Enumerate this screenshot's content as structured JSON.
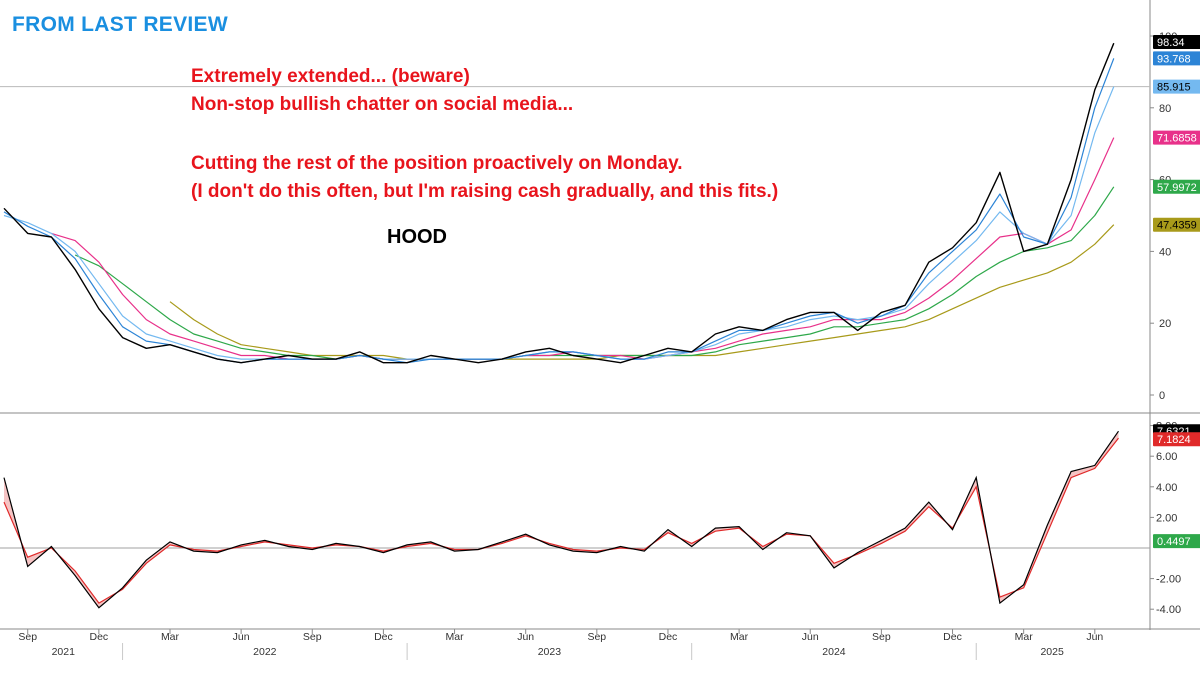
{
  "header": {
    "label": "FROM LAST REVIEW",
    "color": "#1a8fe0"
  },
  "notes": {
    "color": "#e8141c",
    "line1": "Extremely extended... (beware)",
    "line2": "Non-stop bullish chatter on social media...",
    "line3": "Cutting the rest of the position proactively on Monday.",
    "line4": "(I don't do this often, but I'm raising cash gradually, and this fits.)"
  },
  "chart_data": [
    {
      "type": "line",
      "ticker": "HOOD",
      "xlabel": "",
      "ylabel": "",
      "ylim": [
        0,
        100
      ],
      "yticks": [
        "0",
        "20",
        "40",
        "60",
        "80",
        "100"
      ],
      "x_months": [
        "Sep",
        "Dec",
        "Mar",
        "Jun",
        "Sep",
        "Dec",
        "Mar",
        "Jun",
        "Sep",
        "Dec",
        "Mar",
        "Jun",
        "Sep",
        "Dec",
        "Mar",
        "Jun"
      ],
      "x_years": [
        "2021",
        "2022",
        "2023",
        "2024",
        "2025"
      ],
      "reference_line": 85.915,
      "x": [
        "2021-08",
        "2021-09",
        "2021-10",
        "2021-11",
        "2021-12",
        "2022-01",
        "2022-02",
        "2022-03",
        "2022-04",
        "2022-05",
        "2022-06",
        "2022-07",
        "2022-08",
        "2022-09",
        "2022-10",
        "2022-11",
        "2022-12",
        "2023-01",
        "2023-02",
        "2023-03",
        "2023-04",
        "2023-05",
        "2023-06",
        "2023-07",
        "2023-08",
        "2023-09",
        "2023-10",
        "2023-11",
        "2023-12",
        "2024-01",
        "2024-02",
        "2024-03",
        "2024-04",
        "2024-05",
        "2024-06",
        "2024-07",
        "2024-08",
        "2024-09",
        "2024-10",
        "2024-11",
        "2024-12",
        "2025-01",
        "2025-02",
        "2025-03",
        "2025-04",
        "2025-05",
        "2025-06",
        "2025-07"
      ],
      "series": [
        {
          "role": "price",
          "color": "#000000",
          "values": [
            52,
            45,
            44,
            35,
            24,
            16,
            13,
            14,
            12,
            10,
            9,
            10,
            11,
            10,
            10,
            12,
            9,
            9,
            11,
            10,
            9,
            10,
            12,
            13,
            11,
            10,
            9,
            11,
            13,
            12,
            17,
            19,
            18,
            21,
            23,
            23,
            18,
            23,
            25,
            37,
            41,
            48,
            62,
            40,
            42,
            60,
            85,
            98
          ]
        },
        {
          "role": "ma-short",
          "color": "#2c84d6",
          "values": [
            51,
            47,
            44,
            38,
            28,
            19,
            15,
            14,
            12,
            10,
            9,
            10,
            10,
            10,
            10,
            11,
            10,
            9,
            10,
            10,
            10,
            10,
            11,
            12,
            12,
            11,
            10,
            10,
            12,
            12,
            15,
            18,
            18,
            20,
            22,
            23,
            20,
            22,
            25,
            34,
            40,
            46,
            56,
            44,
            42,
            55,
            80,
            93.768
          ]
        },
        {
          "role": "ma-mid-short",
          "color": "#74b9f0",
          "values": [
            50,
            48,
            45,
            40,
            31,
            22,
            17,
            15,
            13,
            11,
            10,
            10,
            10,
            10,
            10,
            11,
            10,
            10,
            10,
            10,
            10,
            10,
            11,
            12,
            12,
            11,
            10,
            10,
            11,
            12,
            14,
            17,
            18,
            19,
            21,
            22,
            21,
            22,
            24,
            31,
            37,
            43,
            51,
            45,
            42,
            50,
            73,
            85.915
          ]
        },
        {
          "role": "ma-mid",
          "color": "#e8318a",
          "values": [
            null,
            null,
            45,
            43,
            37,
            28,
            21,
            17,
            15,
            13,
            11,
            11,
            10,
            10,
            10,
            11,
            10,
            10,
            10,
            10,
            10,
            10,
            11,
            11,
            12,
            11,
            11,
            10,
            11,
            12,
            13,
            15,
            17,
            18,
            19,
            21,
            21,
            21,
            23,
            27,
            32,
            38,
            44,
            45,
            42,
            46,
            60,
            71.6858
          ]
        },
        {
          "role": "ma-long",
          "color": "#2ea84a",
          "values": [
            null,
            null,
            null,
            39,
            36,
            31,
            26,
            21,
            17,
            15,
            13,
            12,
            11,
            11,
            10,
            11,
            10,
            10,
            10,
            10,
            10,
            10,
            11,
            11,
            11,
            11,
            11,
            11,
            11,
            11,
            12,
            14,
            15,
            16,
            17,
            19,
            19,
            20,
            21,
            24,
            28,
            33,
            37,
            40,
            41,
            43,
            50,
            57.9972
          ]
        },
        {
          "role": "ma-longest",
          "color": "#a89a1a",
          "values": [
            null,
            null,
            null,
            null,
            null,
            null,
            null,
            26,
            21,
            17,
            14,
            13,
            12,
            11,
            11,
            11,
            11,
            10,
            10,
            10,
            10,
            10,
            10,
            10,
            10,
            10,
            11,
            11,
            11,
            11,
            11,
            12,
            13,
            14,
            15,
            16,
            17,
            18,
            19,
            21,
            24,
            27,
            30,
            32,
            34,
            37,
            42,
            47.4359
          ]
        }
      ],
      "right_labels": [
        {
          "text": "98.34",
          "bg": "#000000",
          "fg": "#ffffff",
          "value": 98.34
        },
        {
          "text": "93.768",
          "bg": "#2c84d6",
          "fg": "#ffffff",
          "value": 93.768
        },
        {
          "text": "85.915",
          "bg": "#74b9f0",
          "fg": "#000000",
          "value": 85.915
        },
        {
          "text": "71.6858",
          "bg": "#e8318a",
          "fg": "#ffffff",
          "value": 71.6858
        },
        {
          "text": "57.9972",
          "bg": "#2ea84a",
          "fg": "#ffffff",
          "value": 57.9972
        },
        {
          "text": "47.4359",
          "bg": "#a89a1a",
          "fg": "#000000",
          "value": 47.4359
        }
      ]
    },
    {
      "type": "area",
      "ylim": [
        -4.6,
        8
      ],
      "yticks": [
        "-4.00",
        "-2.00",
        "2.00",
        "4.00",
        "6.00",
        "8.00"
      ],
      "zero_line": 0,
      "x": [
        "2021-08",
        "2021-09",
        "2021-10",
        "2021-11",
        "2021-12",
        "2022-01",
        "2022-02",
        "2022-03",
        "2022-04",
        "2022-05",
        "2022-06",
        "2022-07",
        "2022-08",
        "2022-09",
        "2022-10",
        "2022-11",
        "2022-12",
        "2023-01",
        "2023-02",
        "2023-03",
        "2023-04",
        "2023-05",
        "2023-06",
        "2023-07",
        "2023-08",
        "2023-09",
        "2023-10",
        "2023-11",
        "2023-12",
        "2024-01",
        "2024-02",
        "2024-03",
        "2024-04",
        "2024-05",
        "2024-06",
        "2024-07",
        "2024-08",
        "2024-09",
        "2024-10",
        "2024-11",
        "2024-12",
        "2025-01",
        "2025-02",
        "2025-03",
        "2025-04",
        "2025-05",
        "2025-06",
        "2025-07"
      ],
      "series": [
        {
          "role": "fast",
          "color": "#000000",
          "values": [
            4.6,
            -1.2,
            0.1,
            -1.8,
            -3.9,
            -2.6,
            -0.8,
            0.4,
            -0.2,
            -0.3,
            0.2,
            0.5,
            0.1,
            -0.1,
            0.3,
            0.1,
            -0.3,
            0.2,
            0.4,
            -0.2,
            -0.1,
            0.4,
            0.9,
            0.2,
            -0.2,
            -0.3,
            0.1,
            -0.2,
            1.2,
            0.1,
            1.3,
            1.4,
            -0.1,
            1.0,
            0.8,
            -1.3,
            -0.3,
            0.5,
            1.3,
            3.0,
            1.2,
            4.6,
            -3.6,
            -2.4,
            1.5,
            5.0,
            5.4,
            7.6321
          ]
        },
        {
          "role": "slow",
          "color": "#e02a2a",
          "values": [
            3.0,
            -0.6,
            0.0,
            -1.5,
            -3.6,
            -2.7,
            -1.0,
            0.2,
            -0.1,
            -0.2,
            0.1,
            0.4,
            0.2,
            0.0,
            0.2,
            0.1,
            -0.2,
            0.1,
            0.3,
            -0.1,
            -0.1,
            0.3,
            0.8,
            0.3,
            -0.1,
            -0.2,
            0.0,
            -0.1,
            1.0,
            0.3,
            1.1,
            1.3,
            0.1,
            0.9,
            0.8,
            -1.0,
            -0.4,
            0.3,
            1.1,
            2.7,
            1.3,
            4.0,
            -3.2,
            -2.6,
            1.0,
            4.6,
            5.2,
            7.1824
          ]
        }
      ],
      "right_labels": [
        {
          "text": "7.6321",
          "bg": "#000000",
          "fg": "#ffffff",
          "value": 7.6321
        },
        {
          "text": "7.1824",
          "bg": "#e02a2a",
          "fg": "#ffffff",
          "value": 7.1824
        },
        {
          "text": "0.4497",
          "bg": "#2ea84a",
          "fg": "#ffffff",
          "value": 0.4497
        }
      ]
    }
  ]
}
